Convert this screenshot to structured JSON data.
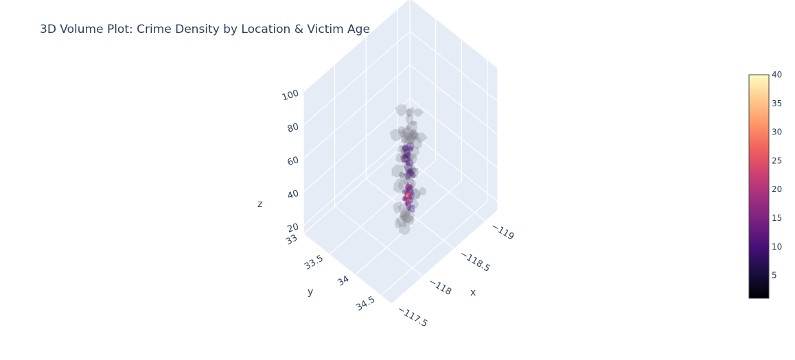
{
  "title": "3D Volume Plot: Crime Density by Location & Victim Age",
  "chart_data": {
    "type": "volume",
    "axes": {
      "x": {
        "label": "x",
        "range": [
          -119.2,
          -117.5
        ],
        "ticks": [
          -119,
          -118.5,
          -118,
          -117.5
        ],
        "tick_labels": [
          "−119",
          "−118.5",
          "−118",
          "−117.5"
        ]
      },
      "y": {
        "label": "y",
        "range": [
          33,
          34.7
        ],
        "ticks": [
          33,
          33.5,
          34,
          34.5
        ],
        "tick_labels": [
          "33",
          "33.5",
          "34",
          "34.5"
        ]
      },
      "z": {
        "label": "z",
        "range": [
          15,
          100
        ],
        "ticks": [
          20,
          40,
          60,
          80,
          100
        ],
        "tick_labels": [
          "20",
          "40",
          "60",
          "80",
          "100"
        ]
      }
    },
    "colorbar": {
      "range": [
        1,
        40
      ],
      "ticks": [
        5,
        10,
        15,
        20,
        25,
        30,
        35,
        40
      ],
      "tick_labels": [
        "5",
        "10",
        "15",
        "20",
        "25",
        "30",
        "35",
        "40"
      ],
      "colorscale": "magma",
      "colors": [
        "#000004",
        "#180f3d",
        "#440f76",
        "#721f81",
        "#9e2f7f",
        "#cd4071",
        "#f1605d",
        "#fd9668",
        "#feca8d",
        "#fcfdbf"
      ]
    },
    "volume": {
      "center": {
        "x": -118.3,
        "y": 34.05
      },
      "z_range": [
        20,
        90
      ],
      "peak_z": 38,
      "peak_value": 40
    },
    "grid": true,
    "scene_background": "#e5ecf6"
  }
}
